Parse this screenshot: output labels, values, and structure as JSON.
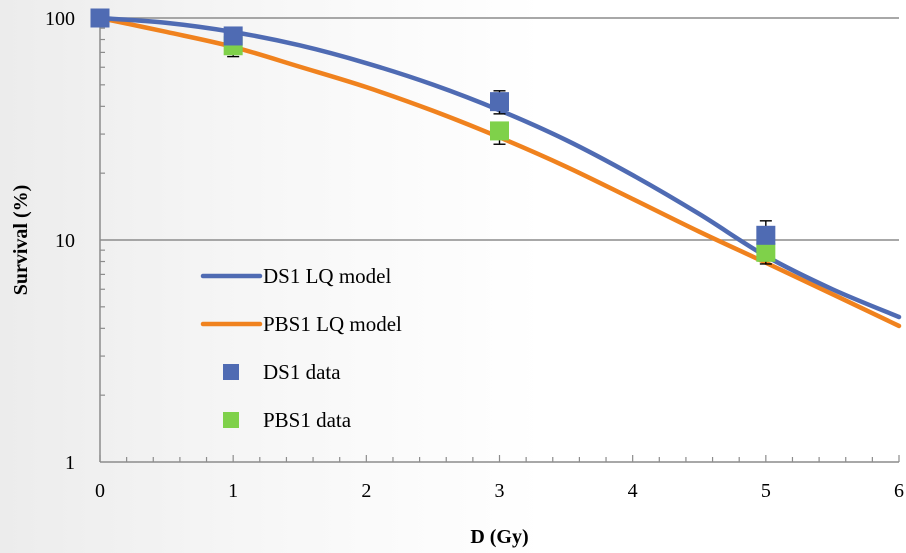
{
  "chart_data": {
    "type": "scatter",
    "xlabel": "D (Gy)",
    "ylabel": "Survival (%)",
    "x_scale": "linear",
    "y_scale": "log",
    "xlim": [
      0,
      6
    ],
    "ylim": [
      1,
      100
    ],
    "x_ticks": [
      "0",
      "1",
      "2",
      "3",
      "4",
      "5",
      "6"
    ],
    "y_ticks": [
      "1",
      "10",
      "100"
    ],
    "gridlines": "horizontal at 10",
    "legend_position": "left-lower",
    "series": [
      {
        "name": "DS1 LQ model",
        "kind": "line",
        "color": "#4f6bb3",
        "x": [
          0,
          0.5,
          1,
          1.5,
          2,
          2.5,
          3,
          3.5,
          4,
          4.5,
          5,
          5.5,
          6
        ],
        "y": [
          100,
          95.1,
          86.5,
          75.3,
          62.6,
          50.1,
          38.4,
          28.2,
          19.6,
          13.1,
          8.47,
          6.0,
          4.5
        ]
      },
      {
        "name": "PBS1 LQ model",
        "kind": "line",
        "color": "#f0821e",
        "x": [
          0,
          0.5,
          1,
          1.5,
          2,
          2.5,
          3,
          3.5,
          4,
          4.5,
          5,
          5.5,
          6
        ],
        "y": [
          100,
          86.5,
          74.1,
          60.3,
          48.8,
          38.2,
          29.0,
          21.4,
          15.3,
          10.9,
          7.9,
          5.7,
          4.1
        ]
      },
      {
        "name": "DS1 data",
        "kind": "points",
        "color": "#4f6bb3",
        "x": [
          0,
          1,
          3,
          5
        ],
        "y": [
          100,
          83,
          42,
          10.5
        ],
        "err_low": [
          100,
          77,
          37,
          9.3
        ],
        "err_high": [
          100,
          87,
          47,
          12.2
        ]
      },
      {
        "name": "PBS1 data",
        "kind": "points",
        "color": "#7fd14a",
        "x": [
          0,
          1,
          3,
          5
        ],
        "y": [
          100,
          75,
          31,
          8.8
        ],
        "err_low": [
          100,
          67,
          27,
          7.8
        ],
        "err_high": [
          100,
          77,
          33,
          9.3
        ]
      }
    ]
  },
  "legend": {
    "items": [
      {
        "label": "DS1 LQ model",
        "kind": "line",
        "color": "#4f6bb3"
      },
      {
        "label": "PBS1 LQ model",
        "kind": "line",
        "color": "#f0821e"
      },
      {
        "label": "DS1 data",
        "kind": "square",
        "color": "#4f6bb3"
      },
      {
        "label": "PBS1 data",
        "kind": "square",
        "color": "#7fd14a"
      }
    ]
  }
}
